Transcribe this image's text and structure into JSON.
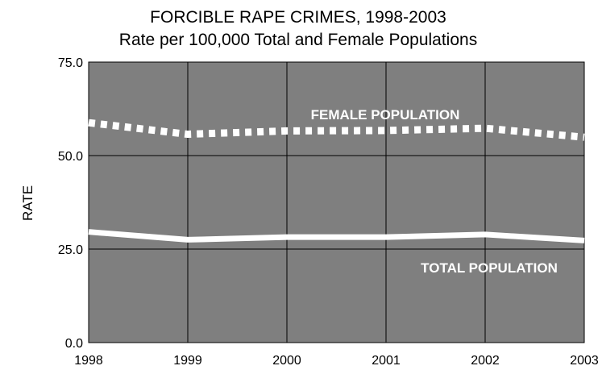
{
  "chart_data": {
    "type": "line",
    "title": "FORCIBLE RAPE CRIMES, 1998-2003",
    "subtitle": "Rate per 100,000 Total and Female Populations",
    "xlabel": "",
    "ylabel": "RATE",
    "x": [
      "1998",
      "1999",
      "2000",
      "2001",
      "2002",
      "2003"
    ],
    "y_ticks": [
      "0.0",
      "25.0",
      "50.0",
      "75.0"
    ],
    "ylim": [
      0,
      75
    ],
    "grid": true,
    "legend": "none",
    "series": [
      {
        "name": "FEMALE POPULATION",
        "values": [
          58.8,
          55.7,
          56.6,
          56.7,
          57.3,
          54.9
        ],
        "style": "dotted",
        "color": "#ffffff"
      },
      {
        "name": "TOTAL POPULATION",
        "values": [
          29.6,
          27.5,
          28.2,
          28.2,
          28.9,
          27.3
        ],
        "style": "solid",
        "color": "#ffffff"
      }
    ],
    "colors": {
      "plot_background": "#7f7f7f",
      "gridline": "#000000",
      "series_line": "#ffffff"
    }
  }
}
